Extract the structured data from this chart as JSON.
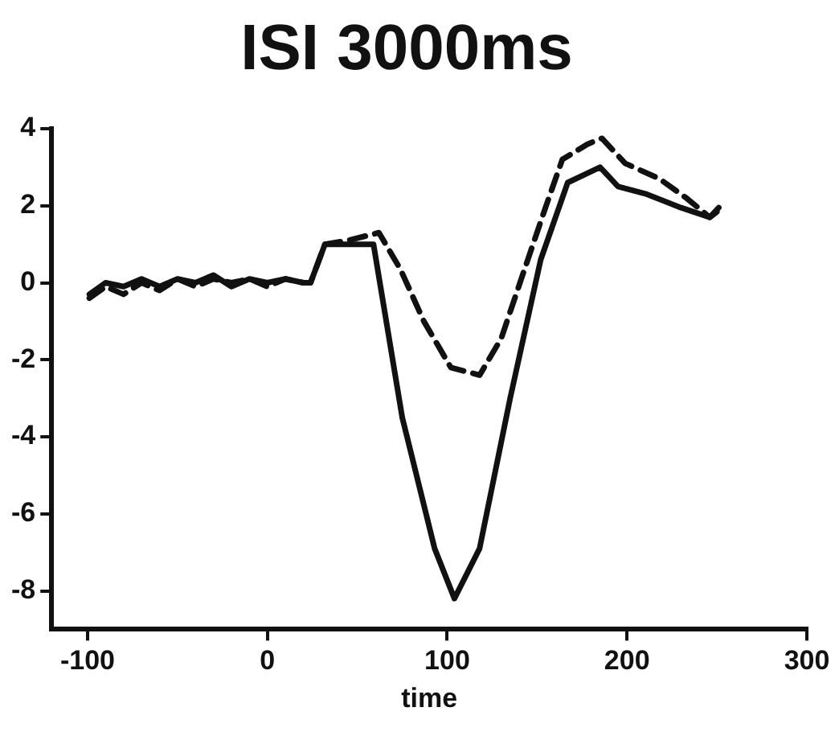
{
  "chart_data": {
    "type": "line",
    "title": "ISI 3000ms",
    "xlabel": "time",
    "xlim": [
      -120,
      300
    ],
    "xticks": [
      -100,
      0,
      100,
      200,
      300
    ],
    "ylim": [
      -9,
      4
    ],
    "yticks": [
      -8,
      -6,
      -4,
      -2,
      0,
      2,
      4
    ],
    "grid": false,
    "legend": false,
    "marker": "none",
    "series": [
      {
        "color": "#111111",
        "line_style": "solid",
        "x": [
          -99,
          -90,
          -80,
          -70,
          -60,
          -50,
          -40,
          -30,
          -20,
          -10,
          0,
          10,
          20,
          24,
          32,
          45,
          59,
          75,
          93,
          104,
          118,
          135,
          152,
          167,
          185,
          195,
          211,
          230,
          246,
          251
        ],
        "values": [
          -0.3,
          0,
          -0.1,
          0.1,
          -0.1,
          0.1,
          0,
          0.2,
          -0.1,
          0.1,
          0,
          0.1,
          0,
          0,
          1.0,
          1.0,
          1.0,
          -3.5,
          -6.9,
          -8.2,
          -6.9,
          -3.0,
          0.6,
          2.6,
          3.0,
          2.5,
          2.3,
          1.95,
          1.7,
          1.95
        ]
      },
      {
        "color": "#111111",
        "line_style": "dashed",
        "x": [
          -99,
          -90,
          -80,
          -70,
          -60,
          -50,
          -40,
          -30,
          -20,
          -10,
          0,
          10,
          20,
          24,
          32,
          45,
          62,
          74,
          87,
          102,
          118,
          130,
          143,
          155,
          164,
          178,
          186,
          199,
          218,
          233,
          246,
          253
        ],
        "values": [
          -0.4,
          -0.1,
          -0.3,
          0,
          -0.2,
          0.1,
          -0.1,
          0.1,
          0,
          0.1,
          -0.1,
          0.1,
          0,
          0,
          1.0,
          1.1,
          1.3,
          0.35,
          -1.0,
          -2.2,
          -2.4,
          -1.45,
          0.35,
          2.0,
          3.2,
          3.6,
          3.75,
          3.1,
          2.7,
          2.2,
          1.7,
          1.95
        ]
      }
    ]
  }
}
